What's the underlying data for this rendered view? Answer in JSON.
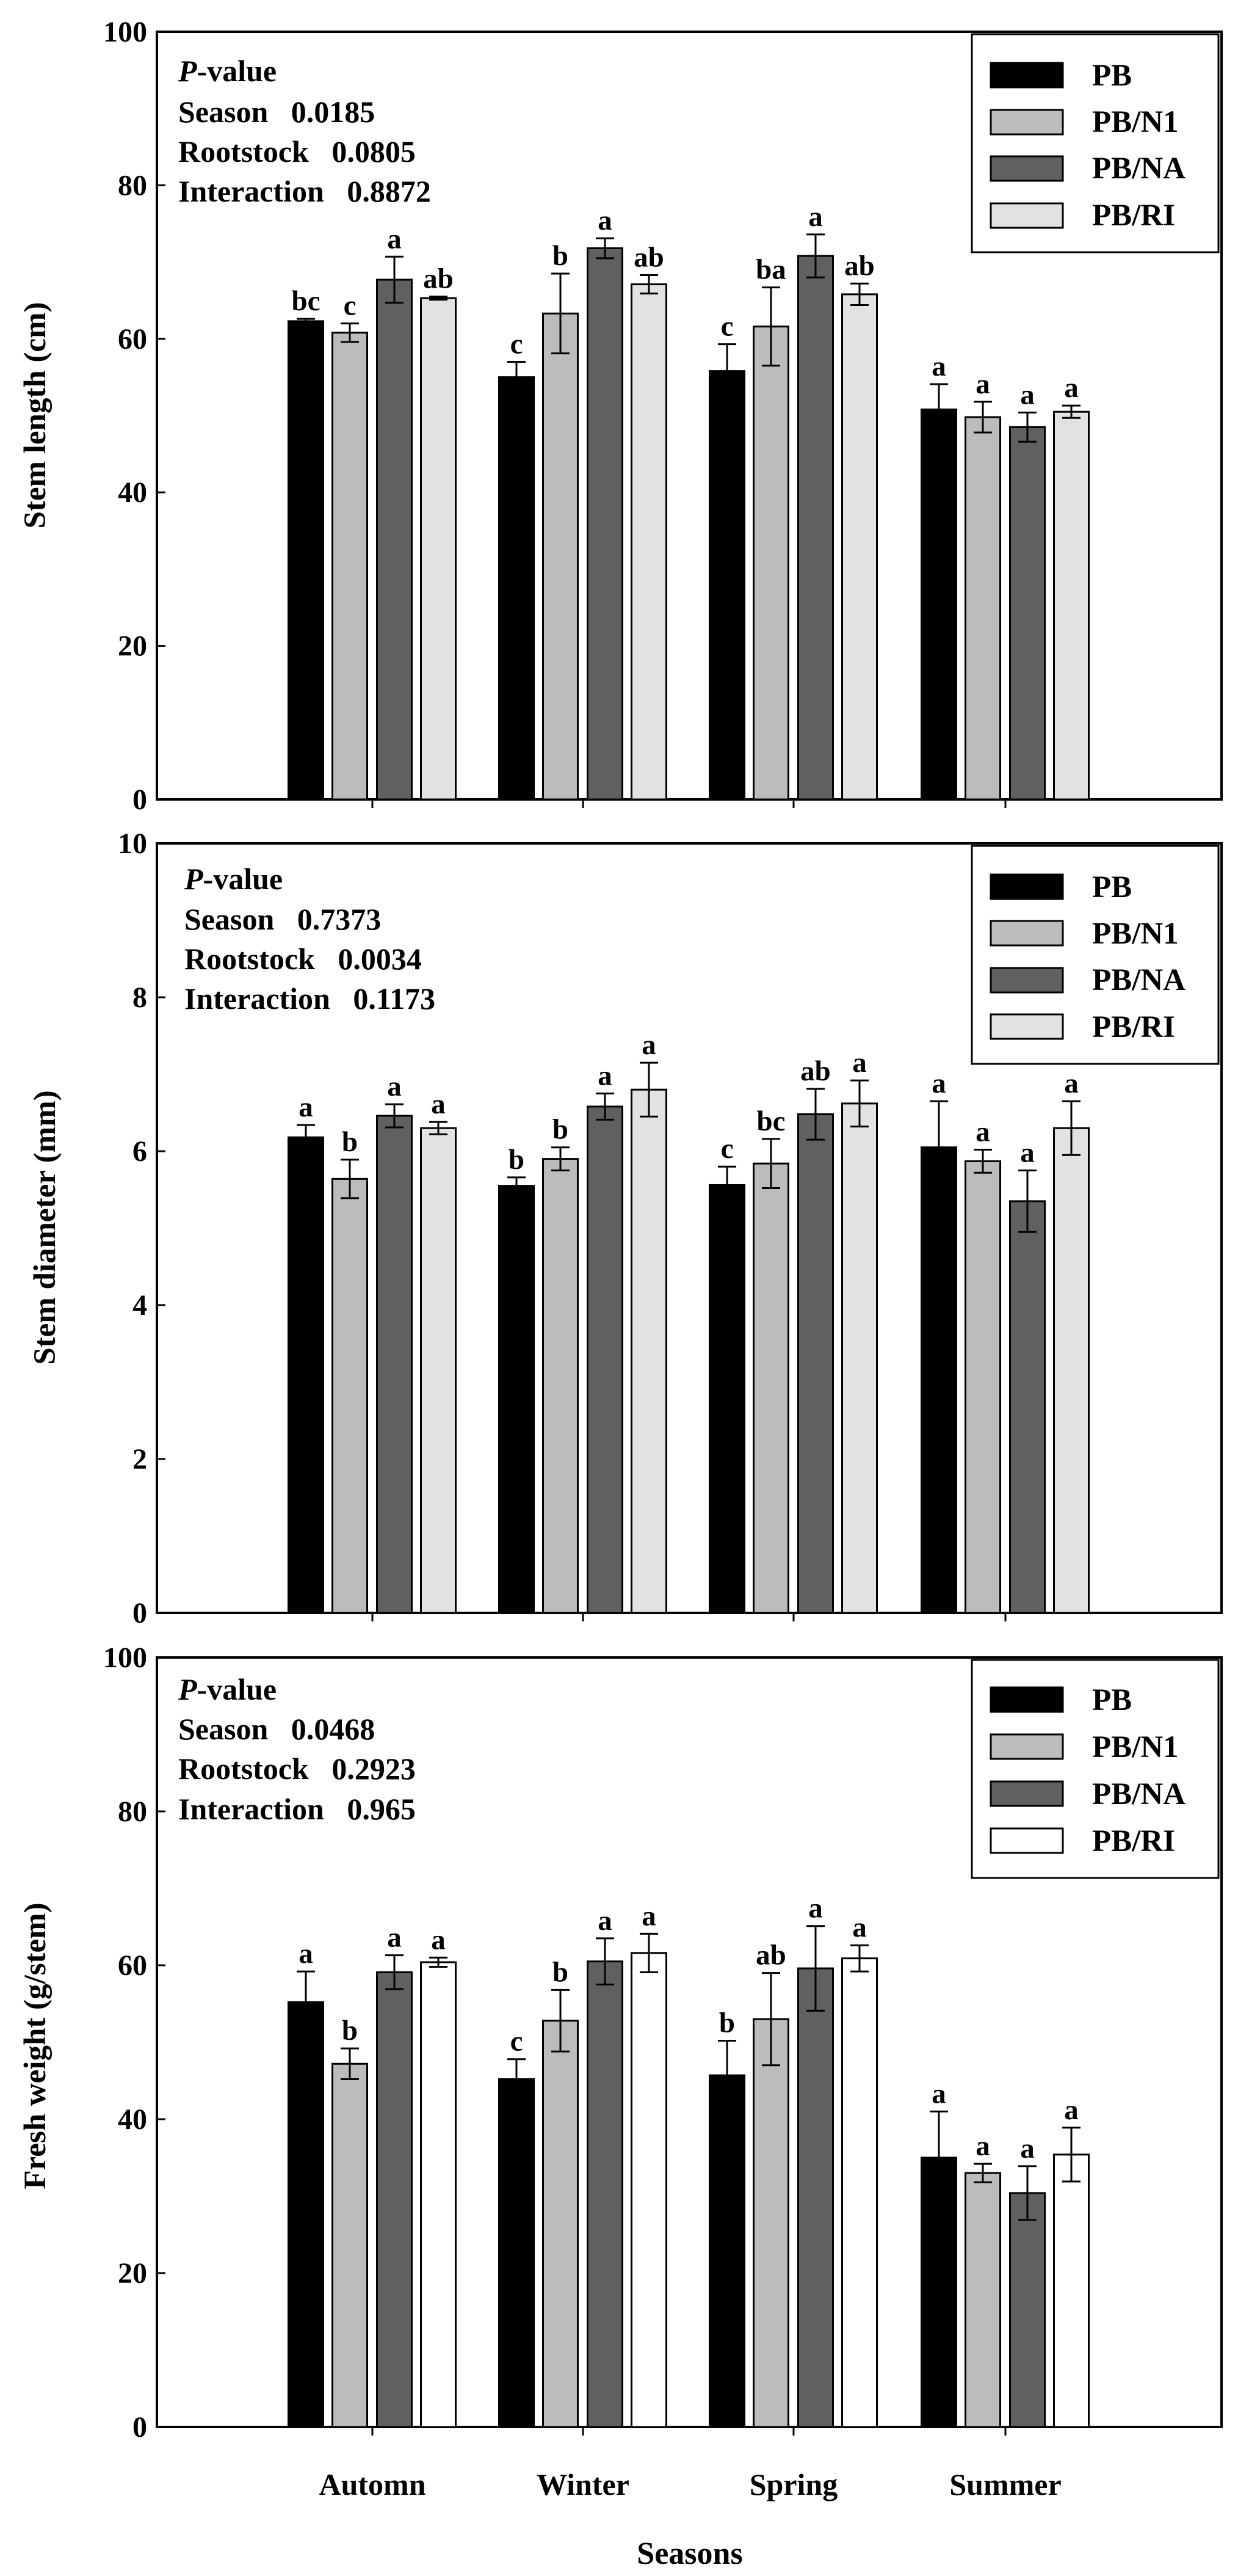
{
  "xaxis": {
    "categories": [
      "Automn",
      "Winter",
      "Spring",
      "Summer"
    ],
    "title": "Seasons"
  },
  "legend": {
    "labels": [
      "PB",
      "PB/N1",
      "PB/NA",
      "PB/RI"
    ]
  },
  "colors": {
    "series": [
      "#000000",
      "#bcbcbc",
      "#606060",
      "#e2e2e2"
    ],
    "series_panel3": [
      "#000000",
      "#bcbcbc",
      "#606060",
      "#ffffff"
    ],
    "background": "#ffffff",
    "axis": "#000000"
  },
  "panels": [
    {
      "pvalue": {
        "title_italic": "P",
        "title_rest": "-value",
        "season": "Season   0.0185",
        "rootstock": "Rootstock   0.0805",
        "interaction": "Interaction   0.8872"
      },
      "ylabel": "Stem length (cm)",
      "yticks": [
        "0",
        "20",
        "40",
        "60",
        "80",
        "100"
      ]
    },
    {
      "pvalue": {
        "title_italic": "P",
        "title_rest": "-value",
        "season": "Season   0.7373",
        "rootstock": "Rootstock   0.0034",
        "interaction": "Interaction   0.1173"
      },
      "ylabel": "Stem diameter (mm)",
      "yticks": [
        "0",
        "2",
        "4",
        "6",
        "8",
        "10"
      ]
    },
    {
      "pvalue": {
        "title_italic": "P",
        "title_rest": "-value",
        "season": "Season   0.0468",
        "rootstock": "Rootstock   0.2923",
        "interaction": "Interaction   0.965"
      },
      "ylabel": "Fresh weight (g/stem)",
      "yticks": [
        "0",
        "20",
        "40",
        "60",
        "80",
        "100"
      ]
    }
  ],
  "chart_data": [
    {
      "type": "bar",
      "title": "",
      "ylabel": "Stem length (cm)",
      "xlabel": "",
      "ylim": [
        0,
        100
      ],
      "categories": [
        "Automn",
        "Winter",
        "Spring",
        "Summer"
      ],
      "series": [
        {
          "name": "PB",
          "values": [
            62.3,
            55.0,
            55.8,
            50.8
          ],
          "errors": [
            0.3,
            2.0,
            3.5,
            3.3
          ],
          "letters": [
            "bc",
            "c",
            "c",
            "a"
          ]
        },
        {
          "name": "PB/N1",
          "values": [
            60.8,
            63.3,
            61.6,
            49.8
          ],
          "errors": [
            1.2,
            5.2,
            5.1,
            2.0
          ],
          "letters": [
            "c",
            "b",
            "ba",
            "a"
          ]
        },
        {
          "name": "PB/NA",
          "values": [
            67.7,
            71.8,
            70.8,
            48.5
          ],
          "errors": [
            3.0,
            1.3,
            2.8,
            1.9
          ],
          "letters": [
            "a",
            "a",
            "a",
            "a"
          ]
        },
        {
          "name": "PB/RI",
          "values": [
            65.3,
            67.1,
            65.8,
            50.5
          ],
          "errors": [
            0.2,
            1.2,
            1.4,
            0.8
          ],
          "letters": [
            "ab",
            "ab",
            "ab",
            "a"
          ]
        }
      ]
    },
    {
      "type": "bar",
      "title": "",
      "ylabel": "Stem diameter (mm)",
      "xlabel": "",
      "ylim": [
        0,
        10
      ],
      "categories": [
        "Automn",
        "Winter",
        "Spring",
        "Summer"
      ],
      "series": [
        {
          "name": "PB",
          "values": [
            6.18,
            5.55,
            5.56,
            6.05
          ],
          "errors": [
            0.16,
            0.11,
            0.24,
            0.6
          ],
          "letters": [
            "a",
            "b",
            "c",
            "a"
          ]
        },
        {
          "name": "PB/N1",
          "values": [
            5.64,
            5.9,
            5.84,
            5.87
          ],
          "errors": [
            0.25,
            0.15,
            0.32,
            0.15
          ],
          "letters": [
            "b",
            "b",
            "bc",
            "a"
          ]
        },
        {
          "name": "PB/NA",
          "values": [
            6.46,
            6.58,
            6.48,
            5.35
          ],
          "errors": [
            0.15,
            0.17,
            0.33,
            0.4
          ],
          "letters": [
            "a",
            "a",
            "ab",
            "a"
          ]
        },
        {
          "name": "PB/RI",
          "values": [
            6.3,
            6.8,
            6.62,
            6.3
          ],
          "errors": [
            0.08,
            0.35,
            0.3,
            0.35
          ],
          "letters": [
            "a",
            "a",
            "a",
            "a"
          ]
        }
      ]
    },
    {
      "type": "bar",
      "title": "",
      "ylabel": "Fresh weight (g/stem)",
      "xlabel": "Seasons",
      "ylim": [
        0,
        100
      ],
      "categories": [
        "Automn",
        "Winter",
        "Spring",
        "Summer"
      ],
      "series": [
        {
          "name": "PB",
          "values": [
            55.2,
            45.2,
            45.7,
            35.0
          ],
          "errors": [
            4.0,
            2.6,
            4.5,
            6.0
          ],
          "letters": [
            "a",
            "c",
            "b",
            "a"
          ]
        },
        {
          "name": "PB/N1",
          "values": [
            47.2,
            52.8,
            53.0,
            33.0
          ],
          "errors": [
            2.0,
            4.0,
            6.0,
            1.2
          ],
          "letters": [
            "b",
            "b",
            "ab",
            "a"
          ]
        },
        {
          "name": "PB/NA",
          "values": [
            59.1,
            60.5,
            59.6,
            30.4
          ],
          "errors": [
            2.2,
            3.0,
            5.5,
            3.5
          ],
          "letters": [
            "a",
            "a",
            "a",
            "a"
          ]
        },
        {
          "name": "PB/RI",
          "values": [
            60.4,
            61.6,
            60.9,
            35.4
          ],
          "errors": [
            0.6,
            2.5,
            1.7,
            3.5
          ],
          "letters": [
            "a",
            "a",
            "a",
            "a"
          ]
        }
      ]
    }
  ]
}
